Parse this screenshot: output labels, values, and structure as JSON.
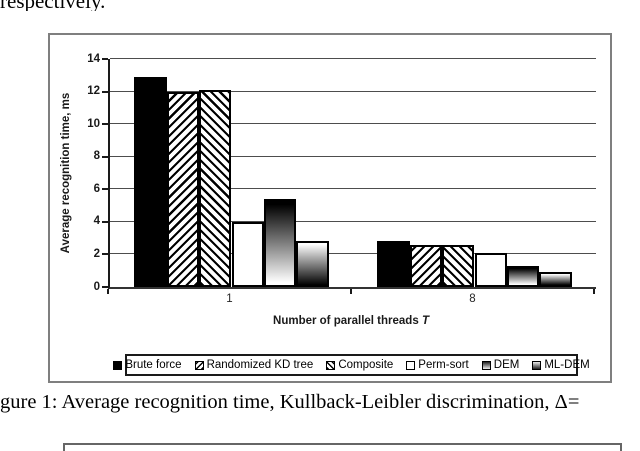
{
  "page": {
    "top_text_fragment": "respectively.",
    "caption": "gure 1: Average recognition time, Kullback-Leibler discrimination, Δ="
  },
  "chart_data": {
    "type": "bar",
    "title": "",
    "categories": [
      "1",
      "8"
    ],
    "series": [
      {
        "name": "Brute force",
        "style": "solid-black",
        "values": [
          12.9,
          2.8
        ]
      },
      {
        "name": "Randomized KD tree",
        "style": "hatch-forward",
        "values": [
          12.0,
          2.6
        ]
      },
      {
        "name": "Composite",
        "style": "hatch-backward",
        "values": [
          12.1,
          2.6
        ]
      },
      {
        "name": "Perm-sort",
        "style": "white",
        "values": [
          4.0,
          2.1
        ]
      },
      {
        "name": "DEM",
        "style": "gradient-dark-top",
        "values": [
          5.4,
          1.3
        ]
      },
      {
        "name": "ML-DEM",
        "style": "gradient-dark-bottom",
        "values": [
          2.8,
          0.9
        ]
      }
    ],
    "xlabel": "Number of parallel threads T",
    "xlabel_text": "Number of parallel threads",
    "xlabel_symbol": "T",
    "ylabel": "Average recognition time, ms",
    "ylim": [
      0,
      14
    ],
    "yticks": [
      0,
      2,
      4,
      6,
      8,
      10,
      12,
      14
    ],
    "grid": true,
    "legend_position": "bottom-inside"
  },
  "colors": {
    "bar_black": "#000000",
    "bar_white": "#ffffff",
    "figure_box_border": "#7f7f7f",
    "axis": "#1a1a1a",
    "gridline": "#4d4d4d",
    "text": "#000000"
  }
}
